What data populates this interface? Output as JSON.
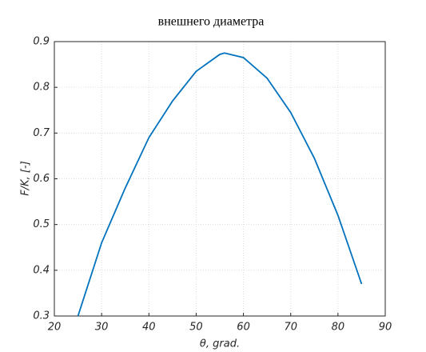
{
  "chart_data": {
    "type": "line",
    "title": "внешнего диаметра",
    "xlabel": "θ, grad.",
    "ylabel": "F/K, [-]",
    "x": [
      25,
      30,
      35,
      40,
      45,
      50,
      55,
      56,
      60,
      65,
      70,
      75,
      80,
      85
    ],
    "series": [
      {
        "color": "#0072bd",
        "values": [
          0.3,
          0.46,
          0.58,
          0.69,
          0.77,
          0.835,
          0.872,
          0.875,
          0.865,
          0.82,
          0.745,
          0.645,
          0.52,
          0.37
        ]
      }
    ],
    "xlim": [
      20,
      90
    ],
    "xticks": [
      20,
      30,
      40,
      50,
      60,
      70,
      80,
      90
    ],
    "ylim": [
      0.3,
      0.9
    ],
    "yticks": [
      0.3,
      0.4,
      0.5,
      0.6,
      0.7,
      0.8,
      0.9
    ],
    "grid": true
  }
}
